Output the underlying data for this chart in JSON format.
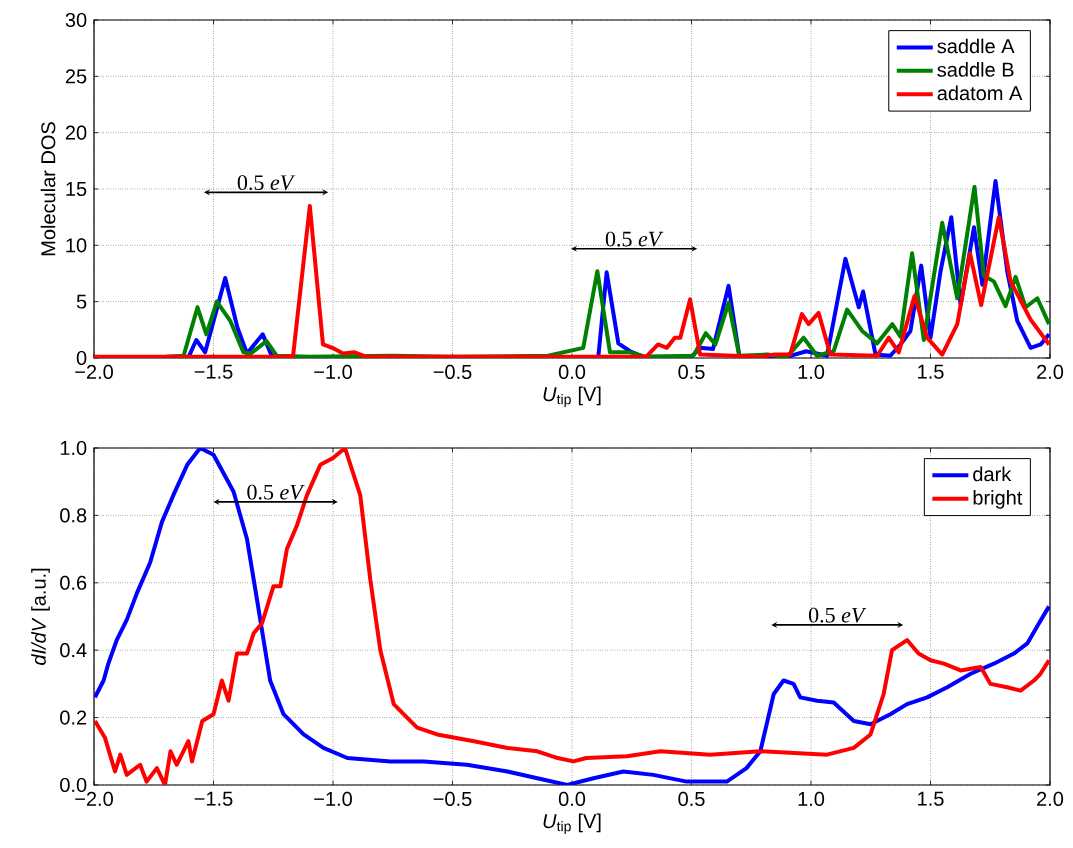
{
  "chart_data": [
    {
      "type": "line",
      "ylabel": "Molecular DOS",
      "xlabel": "*U*$_{tip}$ [V]",
      "xlim": [
        -2,
        2
      ],
      "ylim": [
        0,
        30
      ],
      "xticks": [
        {
          "value": -2,
          "label": "−2.0"
        },
        {
          "value": -1.5,
          "label": "−1.5"
        },
        {
          "value": -1,
          "label": "−1.0"
        },
        {
          "value": -0.5,
          "label": "−0.5"
        },
        {
          "value": 0,
          "label": "0.0"
        },
        {
          "value": 0.5,
          "label": "0.5"
        },
        {
          "value": 1,
          "label": "1.0"
        },
        {
          "value": 1.5,
          "label": "1.5"
        },
        {
          "value": 2,
          "label": "2.0"
        }
      ],
      "yticks": [
        0,
        5,
        10,
        15,
        20,
        25,
        30
      ],
      "grid": true,
      "legend": "top right",
      "line_style": "solid",
      "annotations": [
        "0.5 *eV*",
        "0.5 *eV*"
      ],
      "series": [
        {
          "name": "saddle A",
          "color": "#0000ff",
          "x": [
            -2,
            -1.62,
            -1.604,
            -1.572,
            -1.535,
            -1.451,
            -1.4,
            -1.36,
            -1.294,
            -1.257,
            -1.2,
            0.0,
            0.11,
            0.145,
            0.194,
            0.243,
            0.3,
            0.5,
            0.536,
            0.59,
            0.655,
            0.7,
            0.9,
            0.98,
            1.067,
            1.144,
            1.2,
            1.218,
            1.27,
            1.332,
            1.374,
            1.416,
            1.461,
            1.5,
            1.542,
            1.587,
            1.626,
            1.682,
            1.717,
            1.772,
            1.821,
            1.863,
            1.919,
            1.961,
            1.996
          ],
          "values": [
            0,
            0,
            0.1,
            1.6,
            0.5,
            7.1,
            2.7,
            0.4,
            2.1,
            0.2,
            0,
            0,
            0.1,
            7.6,
            1.3,
            0.6,
            0.1,
            0.1,
            0.9,
            0.8,
            6.4,
            0.2,
            0.1,
            0.6,
            0.2,
            8.8,
            4.5,
            5.9,
            0.3,
            0.2,
            1.2,
            2.4,
            8.2,
            1.8,
            7.7,
            12.5,
            4.7,
            11.6,
            6.5,
            15.7,
            7.7,
            3.3,
            0.9,
            1.2,
            2.1
          ]
        },
        {
          "name": "saddle B",
          "color": "#008000",
          "x": [
            -1.7,
            -1.625,
            -1.567,
            -1.53,
            -1.486,
            -1.43,
            -1.375,
            -1.344,
            -1.278,
            -1.236,
            -1.1,
            -0.75,
            -0.5,
            -0.1,
            0.047,
            0.106,
            0.159,
            0.243,
            0.31,
            0.508,
            0.56,
            0.6,
            0.655,
            0.7,
            0.816,
            0.9,
            0.969,
            1.025,
            1.095,
            1.151,
            1.214,
            1.277,
            1.34,
            1.374,
            1.423,
            1.472,
            1.549,
            1.612,
            1.684,
            1.723,
            1.765,
            1.814,
            1.856,
            1.898,
            1.947,
            1.996
          ],
          "values": [
            0.1,
            0.2,
            4.5,
            2.1,
            5.0,
            3.3,
            0.5,
            0.4,
            1.5,
            0.2,
            0.1,
            0.2,
            0.1,
            0.2,
            0.9,
            7.7,
            0.5,
            0.5,
            0.1,
            0.2,
            2.2,
            1.2,
            4.9,
            0.2,
            0.3,
            0.1,
            1.8,
            0.2,
            0.6,
            4.3,
            2.4,
            1.3,
            3.0,
            1.9,
            9.3,
            1.6,
            12.0,
            5.3,
            15.2,
            7.3,
            6.8,
            4.6,
            7.2,
            4.5,
            5.3,
            3.0
          ]
        },
        {
          "name": "adatom A",
          "color": "#ff0000",
          "x": [
            -2,
            -1.2,
            -1.167,
            -1.097,
            -1.042,
            -1.003,
            -0.958,
            -0.91,
            -0.86,
            0.31,
            0.36,
            0.397,
            0.43,
            0.453,
            0.494,
            0.536,
            0.788,
            0.843,
            0.913,
            0.962,
            0.99,
            1.032,
            1.081,
            1.277,
            1.325,
            1.367,
            1.433,
            1.486,
            1.549,
            1.612,
            1.665,
            1.712,
            1.786,
            1.835,
            1.919,
            1.996
          ],
          "values": [
            0.1,
            0.1,
            0.2,
            13.5,
            1.2,
            0.9,
            0.4,
            0.5,
            0.1,
            0.1,
            1.2,
            0.9,
            1.8,
            1.8,
            5.2,
            0.3,
            0.1,
            0.3,
            0.3,
            3.9,
            3.0,
            4.0,
            0.3,
            0.2,
            1.8,
            0.5,
            5.5,
            1.8,
            0.3,
            3.0,
            9.3,
            4.7,
            12.5,
            6.8,
            3.4,
            1.2
          ]
        }
      ]
    },
    {
      "type": "line",
      "ylabel": "*dI/dV* [a.u.]",
      "xlabel": "*U*$_{tip}$ [V]",
      "xlim": [
        -2,
        2
      ],
      "ylim": [
        0,
        1
      ],
      "xticks": [
        {
          "value": -2,
          "label": "−2.0"
        },
        {
          "value": -1.5,
          "label": "−1.5"
        },
        {
          "value": -1,
          "label": "−1.0"
        },
        {
          "value": -0.5,
          "label": "−0.5"
        },
        {
          "value": 0,
          "label": "0.0"
        },
        {
          "value": 0.5,
          "label": "0.5"
        },
        {
          "value": 1,
          "label": "1.0"
        },
        {
          "value": 1.5,
          "label": "1.5"
        },
        {
          "value": 2,
          "label": "2.0"
        }
      ],
      "yticks": [
        {
          "value": 0,
          "label": "0.0"
        },
        {
          "value": 0.2,
          "label": "0.2"
        },
        {
          "value": 0.4,
          "label": "0.4"
        },
        {
          "value": 0.6,
          "label": "0.6"
        },
        {
          "value": 0.8,
          "label": "0.8"
        },
        {
          "value": 1,
          "label": "1.0"
        }
      ],
      "grid": true,
      "legend": "top right",
      "line_style": "solid",
      "annotations": [
        "0.5 *eV*",
        "0.5 *eV*"
      ],
      "series": [
        {
          "name": "dark",
          "color": "#0000ff",
          "x": [
            -1.996,
            -1.96,
            -1.94,
            -1.905,
            -1.863,
            -1.82,
            -1.765,
            -1.716,
            -1.668,
            -1.61,
            -1.556,
            -1.5,
            -1.416,
            -1.36,
            -1.318,
            -1.263,
            -1.207,
            -1.123,
            -1.04,
            -0.94,
            -0.76,
            -0.62,
            -0.44,
            -0.27,
            -0.145,
            -0.02,
            0.09,
            0.215,
            0.34,
            0.48,
            0.648,
            0.73,
            0.788,
            0.844,
            0.885,
            0.927,
            0.955,
            1.025,
            1.095,
            1.179,
            1.249,
            1.332,
            1.402,
            1.486,
            1.57,
            1.668,
            1.765,
            1.849,
            1.905,
            1.954,
            1.996
          ],
          "values": [
            0.26,
            0.31,
            0.36,
            0.43,
            0.49,
            0.57,
            0.66,
            0.78,
            0.86,
            0.95,
            1.0,
            0.98,
            0.87,
            0.73,
            0.55,
            0.31,
            0.21,
            0.15,
            0.11,
            0.08,
            0.07,
            0.07,
            0.06,
            0.04,
            0.02,
            0.0,
            0.02,
            0.04,
            0.03,
            0.01,
            0.01,
            0.05,
            0.1,
            0.27,
            0.31,
            0.3,
            0.26,
            0.25,
            0.245,
            0.19,
            0.18,
            0.21,
            0.24,
            0.26,
            0.29,
            0.33,
            0.36,
            0.39,
            0.42,
            0.48,
            0.53
          ]
        },
        {
          "name": "bright",
          "color": "#ff0000",
          "x": [
            -1.996,
            -1.954,
            -1.912,
            -1.89,
            -1.863,
            -1.807,
            -1.78,
            -1.737,
            -1.703,
            -1.68,
            -1.654,
            -1.605,
            -1.59,
            -1.547,
            -1.5,
            -1.465,
            -1.437,
            -1.402,
            -1.36,
            -1.332,
            -1.297,
            -1.249,
            -1.22,
            -1.193,
            -1.151,
            -1.109,
            -1.053,
            -1.0,
            -0.95,
            -0.886,
            -0.844,
            -0.802,
            -0.746,
            -0.69,
            -0.648,
            -0.564,
            -0.41,
            -0.27,
            -0.145,
            -0.06,
            0.006,
            0.06,
            0.23,
            0.37,
            0.578,
            0.788,
            1.067,
            1.179,
            1.249,
            1.304,
            1.339,
            1.402,
            1.45,
            1.5,
            1.556,
            1.626,
            1.71,
            1.751,
            1.821,
            1.877,
            1.933,
            1.96,
            1.996
          ],
          "values": [
            0.19,
            0.14,
            0.04,
            0.09,
            0.03,
            0.06,
            0.01,
            0.05,
            0.0,
            0.1,
            0.06,
            0.13,
            0.07,
            0.19,
            0.21,
            0.31,
            0.25,
            0.39,
            0.39,
            0.45,
            0.48,
            0.59,
            0.59,
            0.7,
            0.77,
            0.86,
            0.95,
            0.97,
            1.0,
            0.86,
            0.61,
            0.4,
            0.24,
            0.2,
            0.17,
            0.15,
            0.13,
            0.11,
            0.1,
            0.08,
            0.07,
            0.08,
            0.085,
            0.1,
            0.09,
            0.1,
            0.09,
            0.11,
            0.15,
            0.27,
            0.4,
            0.43,
            0.39,
            0.37,
            0.36,
            0.34,
            0.35,
            0.3,
            0.29,
            0.28,
            0.31,
            0.33,
            0.37
          ]
        }
      ]
    }
  ]
}
